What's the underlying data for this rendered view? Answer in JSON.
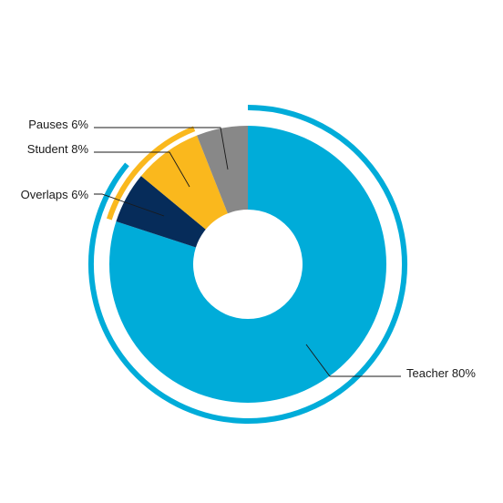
{
  "chart_data": {
    "type": "pie",
    "title": "",
    "slices": [
      {
        "label": "Teacher 80%",
        "value": 80,
        "color": "#00acd9"
      },
      {
        "label": "Overlaps 6%",
        "value": 6,
        "color": "#062c5a"
      },
      {
        "label": "Student 8%",
        "value": 8,
        "color": "#fab81d"
      },
      {
        "label": "Pauses 6%",
        "value": 6,
        "color": "#888888"
      }
    ],
    "outer_arcs": [
      {
        "covers": [
          "Teacher 80%",
          "Overlaps 6%"
        ],
        "color": "#00acd9"
      },
      {
        "covers": [
          "Overlaps 6%",
          "Student 8%"
        ],
        "color": "#fab81d"
      }
    ]
  }
}
